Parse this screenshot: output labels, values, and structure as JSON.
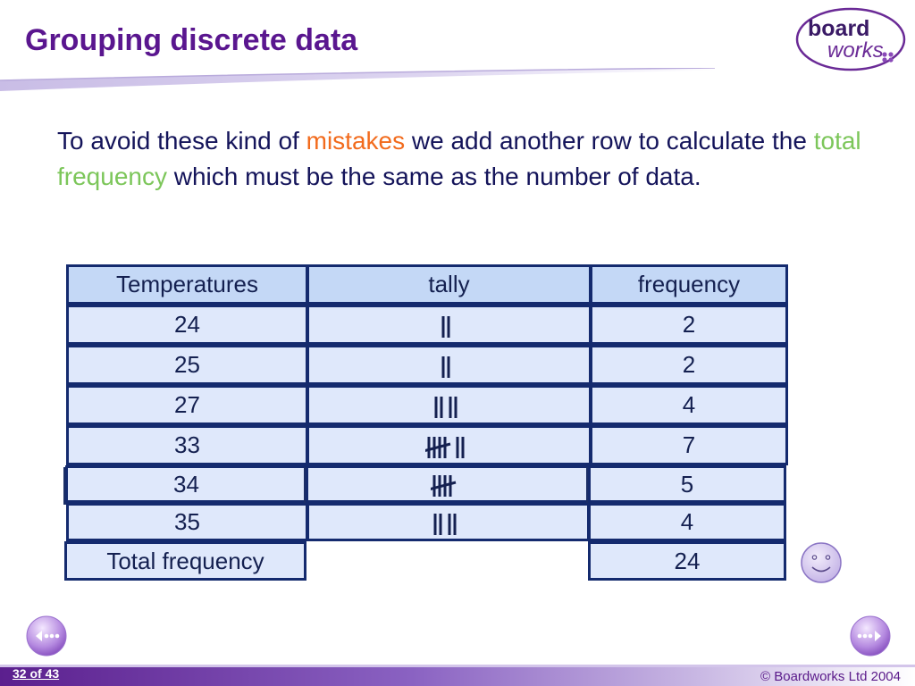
{
  "slide": {
    "title": "Grouping discrete data",
    "intro": {
      "part1": "To avoid these kind of ",
      "highlight1": "mistakes",
      "part2": " we add another row to calculate the ",
      "highlight2": "total frequency",
      "part3": " which must be the same as the number of data."
    },
    "colors": {
      "title": "#5a168f",
      "highlight1": "#f26b1d",
      "highlight2": "#7cc65a",
      "table_border": "#142a6e",
      "table_fill": "#dfe8fb",
      "table_header_fill": "#c4d8f6"
    }
  },
  "logo": {
    "line1": "board",
    "line2": "works"
  },
  "table": {
    "headers": {
      "temperature": "Temperatures",
      "tally": "tally",
      "frequency": "frequency"
    },
    "rows": [
      {
        "temperature": "24",
        "tally": 2,
        "frequency": "2"
      },
      {
        "temperature": "25",
        "tally": 2,
        "frequency": "2"
      },
      {
        "temperature": "27",
        "tally": 4,
        "frequency": "4"
      },
      {
        "temperature": "33",
        "tally": 7,
        "frequency": "7"
      },
      {
        "temperature": "34",
        "tally": 5,
        "frequency": "5"
      },
      {
        "temperature": "35",
        "tally": 4,
        "frequency": "4"
      }
    ],
    "total": {
      "label": "Total frequency",
      "value": "24"
    }
  },
  "icons": {
    "smiley": "smiley-face-icon",
    "prev": "previous-slide-icon",
    "next": "next-slide-icon"
  },
  "footer": {
    "page": "32 of 43",
    "copyright": "© Boardworks Ltd 2004"
  }
}
